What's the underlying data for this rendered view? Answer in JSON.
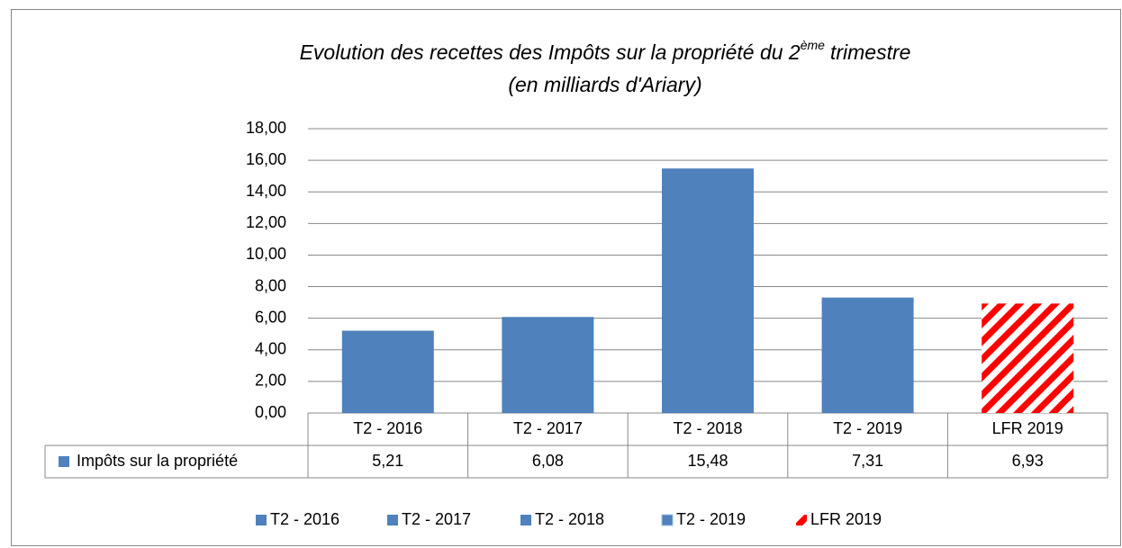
{
  "chart_data": {
    "type": "bar",
    "title": [
      "Evolution des recettes des Impôts sur la propriété du 2",
      "ème",
      "trimestre",
      "(en milliards d'Ariary)"
    ],
    "series_name": "Impôts sur la propriété",
    "categories": [
      "T2 - 2016",
      "T2 - 2017",
      "T2 - 2018",
      "T2 - 2019",
      "LFR 2019"
    ],
    "values": [
      5.21,
      6.08,
      15.48,
      7.31,
      6.93
    ],
    "value_labels": [
      "5,21",
      "6,08",
      "15,48",
      "7,31",
      "6,93"
    ],
    "colors": [
      "#4f81bd",
      "#4f81bd",
      "#4f81bd",
      "#4f81bd",
      "#ff0000"
    ],
    "patterns": [
      "solid",
      "solid",
      "solid",
      "solid",
      "diagonal-stripes"
    ],
    "ylim": [
      0,
      18
    ],
    "yticks": [
      {
        "value": 0,
        "label": "0,00"
      },
      {
        "value": 2,
        "label": "2,00"
      },
      {
        "value": 4,
        "label": "4,00"
      },
      {
        "value": 6,
        "label": "6,00"
      },
      {
        "value": 8,
        "label": "8,00"
      },
      {
        "value": 10,
        "label": "10,00"
      },
      {
        "value": 12,
        "label": "12,00"
      },
      {
        "value": 14,
        "label": "14,00"
      },
      {
        "value": 16,
        "label": "16,00"
      },
      {
        "value": 18,
        "label": "18,00"
      }
    ],
    "grid": true,
    "legend": "bottom"
  }
}
